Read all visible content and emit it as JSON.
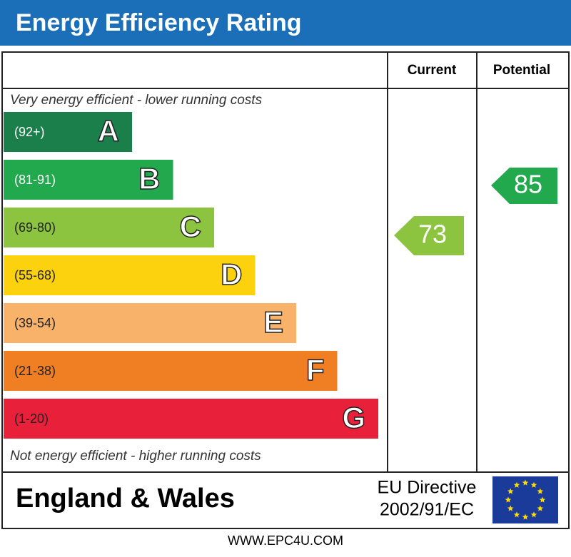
{
  "header": {
    "title": "Energy Efficiency Rating"
  },
  "columns": {
    "current": "Current",
    "potential": "Potential"
  },
  "top_note": "Very energy efficient - lower running costs",
  "bottom_note": "Not energy efficient - higher running costs",
  "bands": [
    {
      "range": "(92+)",
      "letter": "A",
      "color": "#1a7f4b"
    },
    {
      "range": "(81-91)",
      "letter": "B",
      "color": "#22a84d"
    },
    {
      "range": "(69-80)",
      "letter": "C",
      "color": "#8cc43f"
    },
    {
      "range": "(55-68)",
      "letter": "D",
      "color": "#fcd10d"
    },
    {
      "range": "(39-54)",
      "letter": "E",
      "color": "#f8b26a"
    },
    {
      "range": "(21-38)",
      "letter": "F",
      "color": "#f07f24"
    },
    {
      "range": "(1-20)",
      "letter": "G",
      "color": "#e8203a"
    }
  ],
  "current": {
    "value": 73,
    "color": "#8cc43f"
  },
  "potential": {
    "value": 85,
    "color": "#22a84d"
  },
  "footer": {
    "region": "England & Wales",
    "directive_line1": "EU Directive",
    "directive_line2": "2002/91/EC"
  },
  "url": "WWW.EPC4U.COM"
}
